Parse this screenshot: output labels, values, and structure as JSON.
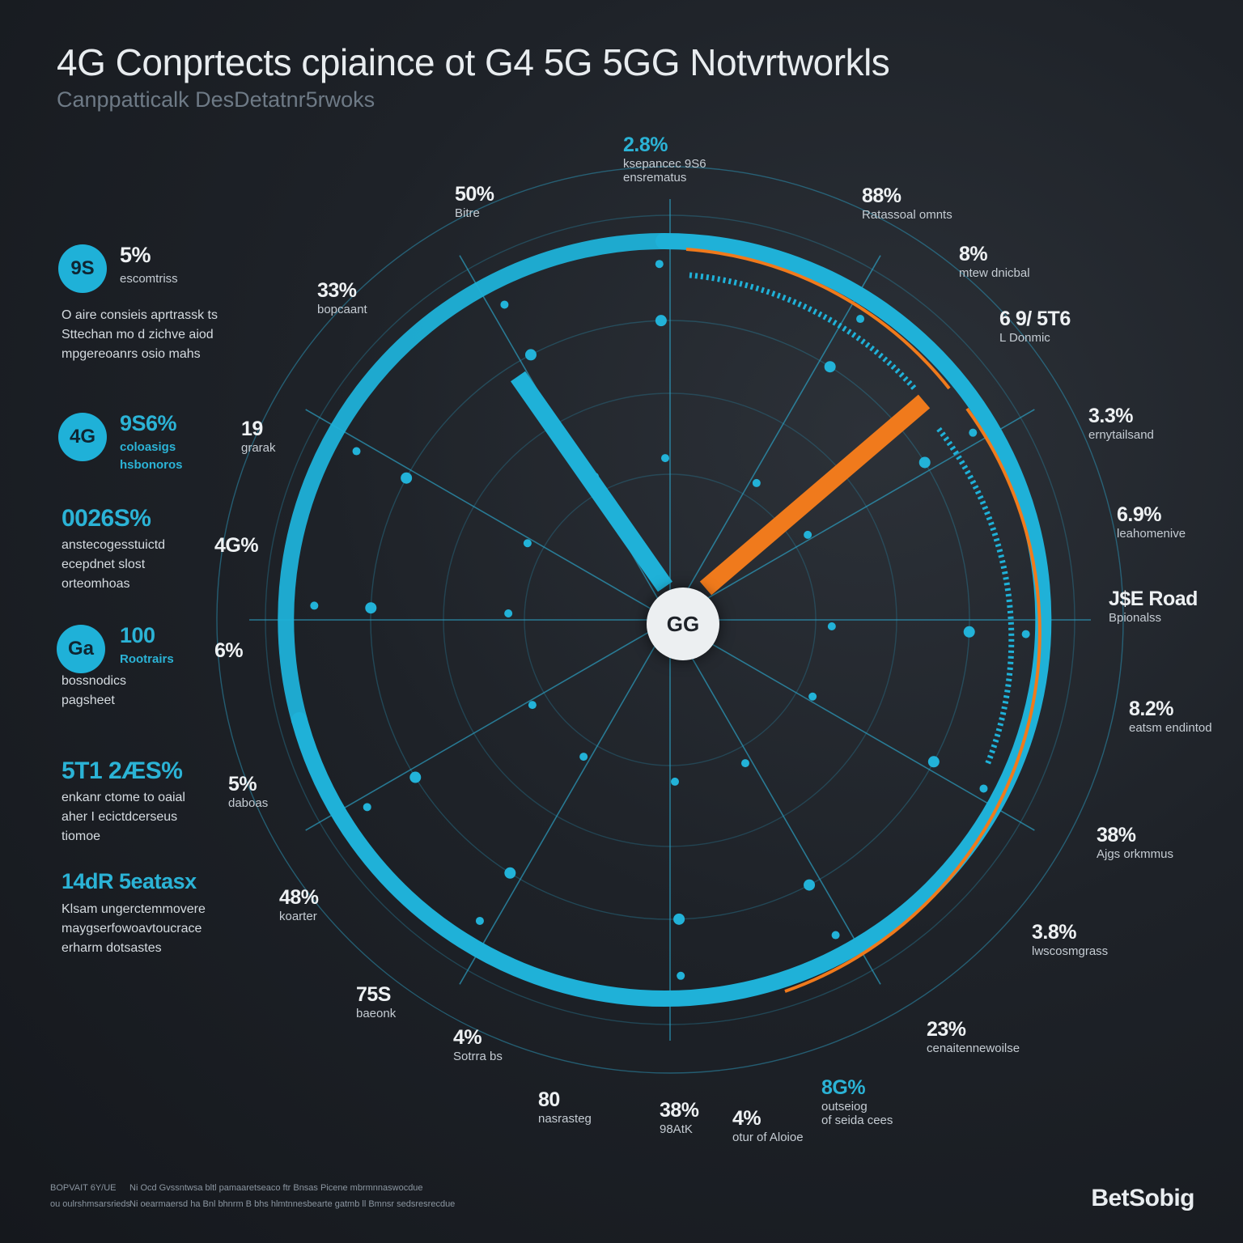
{
  "title": "4G Conprtects cpiaince ot G4 5G 5GG Notvrtworkls",
  "subtitle": "Canppatticalk DesDetatnr5rwoks",
  "hub_label": "GG",
  "colors": {
    "background": "#1e2228",
    "cyan": "#1fb1d8",
    "orange": "#f07a1c",
    "hub": "#eceff1"
  },
  "left_panel": [
    {
      "badge": "9S",
      "value": "5%",
      "label": "escomtriss",
      "desc": [
        "O aire consieis aprtrassk ts",
        "Sttechan mo d zichve aiod",
        "mpgereoanrs osio mahs"
      ]
    },
    {
      "badge": "4G",
      "value": "9S6%",
      "label": "coloasigs\nhsbonoros",
      "desc": []
    },
    {
      "badge": "",
      "value": "0026S%",
      "label": "",
      "desc": [
        "anstecogesstuictd",
        "ecepdnet slost",
        "orteomhoas"
      ]
    },
    {
      "badge": "Ga",
      "value": "100",
      "label": "Rootrairs",
      "desc": [
        "bossnodics",
        "pagsheet"
      ]
    },
    {
      "badge": "",
      "value": "5T1 2ÆS%",
      "label": "",
      "desc": [
        "enkanr ctome to oaial",
        "aher I ecictdcerseus",
        "tiomoe"
      ]
    },
    {
      "badge": "",
      "value": "14dR 5eatasx",
      "label": "",
      "desc": [
        "Klsam ungerctemmovere",
        "maygserfowoavtoucrace",
        "erharm dotsastes"
      ]
    }
  ],
  "ring_labels": [
    {
      "value": "2.8%",
      "label": "ksepancec 9S6\nensrematus",
      "accent": "cyan"
    },
    {
      "value": "88%",
      "label": "Ratassoal omnts",
      "accent": "none"
    },
    {
      "value": "8%",
      "label": "mtew dnicbal",
      "accent": "none"
    },
    {
      "value": "6 9/ 5T6",
      "label": "L Donmic",
      "accent": "none"
    },
    {
      "value": "3.3%",
      "label": "ernytailsand",
      "accent": "none"
    },
    {
      "value": "6.9%",
      "label": "leahomenive",
      "accent": "none"
    },
    {
      "value": "J$E Road",
      "label": "Bpionalss",
      "accent": "none"
    },
    {
      "value": "8.2%",
      "label": "eatsm endintod",
      "accent": "none"
    },
    {
      "value": "38%",
      "label": "Ajgs orkmmus",
      "accent": "none"
    },
    {
      "value": "3.8%",
      "label": "lwscosmgrass",
      "accent": "none"
    },
    {
      "value": "23%",
      "label": "cenaitennewoilse",
      "accent": "none"
    },
    {
      "value": "8G%",
      "label": "outseiog\nof seida cees",
      "accent": "cyan"
    },
    {
      "value": "4%",
      "label": "otur of Aloioe",
      "accent": "none"
    },
    {
      "value": "38%",
      "label": "98AtK",
      "accent": "none"
    },
    {
      "value": "80",
      "label": "nasrasteg",
      "accent": "none"
    },
    {
      "value": "4%",
      "label": "Sotrra bs",
      "accent": "none"
    },
    {
      "value": "75S",
      "label": "baeonk",
      "accent": "none"
    },
    {
      "value": "48%",
      "label": "koarter",
      "accent": "none"
    },
    {
      "value": "5%",
      "label": "daboas",
      "accent": "none"
    },
    {
      "value": "6%",
      "label": "",
      "accent": "none"
    },
    {
      "value": "4G%",
      "label": "",
      "accent": "none"
    },
    {
      "value": "19",
      "label": "grarak",
      "accent": "none"
    },
    {
      "value": "33%",
      "label": "bopcaant",
      "accent": "none"
    },
    {
      "value": "50%",
      "label": "Bitre",
      "accent": "none"
    }
  ],
  "footer": {
    "left": "BOPVAIT 6Y/UE",
    "left_sub": "ou oulrshmsarsrieds",
    "middle_1": "Ni Ocd Gvssntwsa bltl pamaaretseaco ftr Bnsas Picene mbrmnnaswocdue",
    "middle_2": "Ni oearmaersd ha Bnl bhnrm  B bhs hlmtnnesbearte gatmb ll Bmnsr sedsresrecdue",
    "brand": "BetSobig"
  }
}
